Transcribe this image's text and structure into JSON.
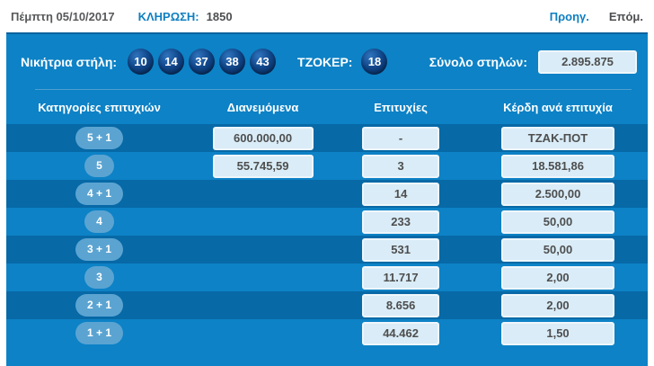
{
  "topbar": {
    "date": "Πέμπτη 05/10/2017",
    "draw_label": "ΚΛΗΡΩΣΗ:",
    "draw_number": "1850",
    "prev_label": "Προηγ.",
    "next_label": "Επόμ."
  },
  "winning": {
    "label": "Νικήτρια στήλη:",
    "numbers": [
      "10",
      "14",
      "37",
      "38",
      "43"
    ],
    "joker_label": "ΤΖΟΚΕΡ:",
    "joker_number": "18"
  },
  "totals": {
    "label": "Σύνολο στηλών:",
    "value": "2.895.875"
  },
  "table": {
    "headers": [
      "Κατηγορίες επιτυχιών",
      "Διανεμόμενα",
      "Επιτυχίες",
      "Κέρδη ανά επιτυχία"
    ],
    "rows": [
      {
        "category": "5 + 1",
        "distributed": "600.000,00",
        "winners": "-",
        "prize": "ΤΖΑΚ-ΠΟΤ"
      },
      {
        "category": "5",
        "distributed": "55.745,59",
        "winners": "3",
        "prize": "18.581,86"
      },
      {
        "category": "4 + 1",
        "distributed": "",
        "winners": "14",
        "prize": "2.500,00"
      },
      {
        "category": "4",
        "distributed": "",
        "winners": "233",
        "prize": "50,00"
      },
      {
        "category": "3 + 1",
        "distributed": "",
        "winners": "531",
        "prize": "50,00"
      },
      {
        "category": "3",
        "distributed": "",
        "winners": "11.717",
        "prize": "2,00"
      },
      {
        "category": "2 + 1",
        "distributed": "",
        "winners": "8.656",
        "prize": "2,00"
      },
      {
        "category": "1 + 1",
        "distributed": "",
        "winners": "44.462",
        "prize": "1,50"
      }
    ]
  },
  "colors": {
    "panel_blue": "#0d82c6",
    "band_blue": "#0769a6",
    "box_light": "#d9ecf7",
    "pill_blue": "#5ba4d2",
    "ball_dark": "#0a3a75",
    "link_blue": "#0e7fc1",
    "text_dark": "#4e4e4e"
  }
}
